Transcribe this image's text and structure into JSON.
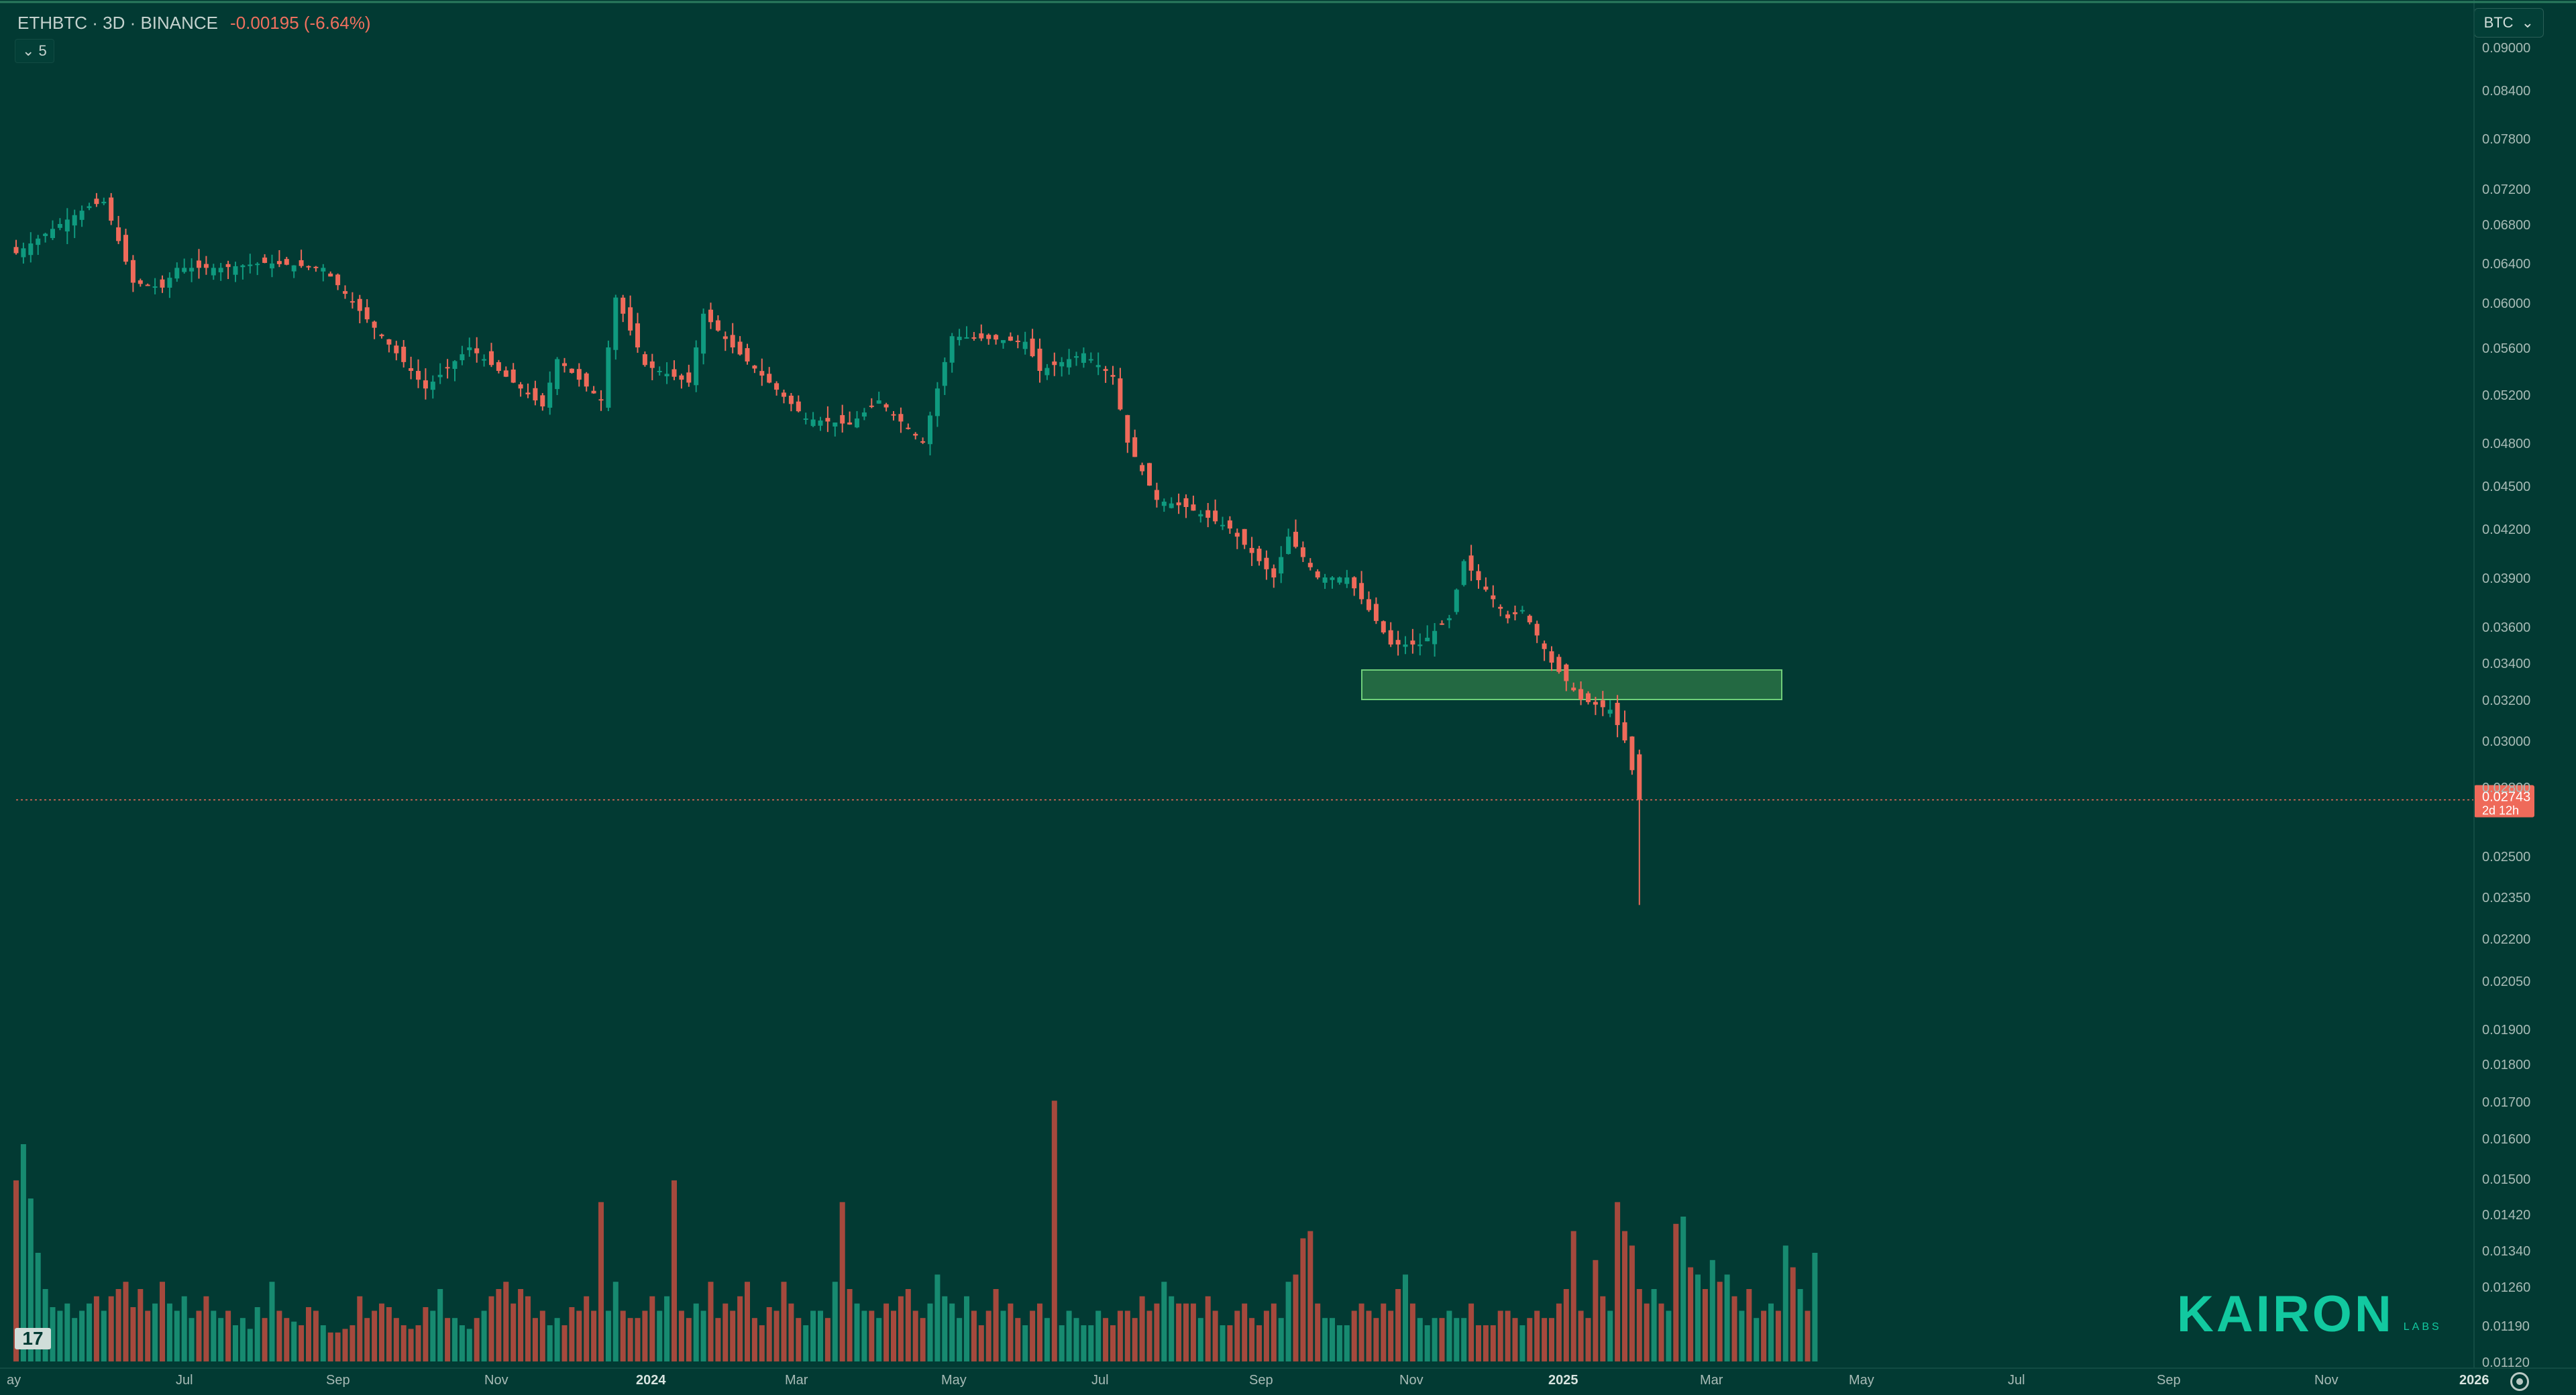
{
  "header": {
    "symbol_line": "ETHBTC · 3D · BINANCE",
    "change": "-0.00195 (-6.64%)",
    "indicator_label": "5",
    "currency": "BTC"
  },
  "price_tag": {
    "value": "0.02743",
    "countdown": "2d 12h"
  },
  "brand": {
    "name": "KAIRON",
    "sub": "LABS"
  },
  "tv_logo": "17",
  "colors": {
    "background": "#023a33",
    "up": "#0f9a7f",
    "down": "#ef6a5a",
    "zone": "#3f8f4f",
    "price_line": "#ef6a5a"
  },
  "chart_data": {
    "type": "candlestick",
    "symbol": "ETHBTC",
    "timeframe": "3D",
    "exchange": "BINANCE",
    "y_axis_ticks": [
      "0.09000",
      "0.08400",
      "0.07800",
      "0.07200",
      "0.06800",
      "0.06400",
      "0.06000",
      "0.05600",
      "0.05200",
      "0.04800",
      "0.04500",
      "0.04200",
      "0.03900",
      "0.03600",
      "0.03400",
      "0.03200",
      "0.03000",
      "0.02800",
      "0.02500",
      "0.02350",
      "0.02200",
      "0.02050",
      "0.01900",
      "0.01800",
      "0.01700",
      "0.01600",
      "0.01500",
      "0.01420",
      "0.01340",
      "0.01260",
      "0.01190",
      "0.01120"
    ],
    "x_axis_labels": [
      "ay",
      "Jul",
      "Sep",
      "Nov",
      "2024",
      "Mar",
      "May",
      "Jul",
      "Sep",
      "Nov",
      "2025",
      "Mar",
      "May",
      "Jul",
      "Sep",
      "Nov",
      "2026"
    ],
    "bold_x_labels": [
      "2024",
      "2025",
      "2026"
    ],
    "last_price": 0.02743,
    "wick_low": 0.0232,
    "zone": {
      "low": 0.032,
      "high": 0.0336
    },
    "price_path": [
      [
        0.065,
        0
      ],
      [
        0.07,
        10
      ],
      [
        0.0705,
        12
      ],
      [
        0.062,
        16
      ],
      [
        0.0615,
        20
      ],
      [
        0.0635,
        22
      ],
      [
        0.0635,
        28
      ],
      [
        0.064,
        34
      ],
      [
        0.0635,
        42
      ],
      [
        0.06,
        46
      ],
      [
        0.0525,
        56
      ],
      [
        0.056,
        62
      ],
      [
        0.053,
        68
      ],
      [
        0.051,
        72
      ],
      [
        0.055,
        74
      ],
      [
        0.0515,
        80
      ],
      [
        0.0605,
        82
      ],
      [
        0.0545,
        86
      ],
      [
        0.053,
        92
      ],
      [
        0.059,
        94
      ],
      [
        0.056,
        98
      ],
      [
        0.05,
        108
      ],
      [
        0.0495,
        114
      ],
      [
        0.0515,
        118
      ],
      [
        0.048,
        124
      ],
      [
        0.057,
        128
      ],
      [
        0.0565,
        138
      ],
      [
        0.054,
        140
      ],
      [
        0.0555,
        146
      ],
      [
        0.0535,
        150
      ],
      [
        0.048,
        152
      ],
      [
        0.044,
        156
      ],
      [
        0.0435,
        160
      ],
      [
        0.042,
        166
      ],
      [
        0.039,
        172
      ],
      [
        0.0415,
        174
      ],
      [
        0.039,
        178
      ],
      [
        0.039,
        182
      ],
      [
        0.035,
        188
      ],
      [
        0.035,
        192
      ],
      [
        0.0365,
        196
      ],
      [
        0.04,
        198
      ],
      [
        0.0365,
        204
      ],
      [
        0.037,
        206
      ],
      [
        0.034,
        210
      ],
      [
        0.032,
        214
      ],
      [
        0.0315,
        218
      ],
      [
        0.03,
        220
      ],
      [
        0.02743,
        222
      ]
    ],
    "volume": [
      50,
      60,
      45,
      30,
      20,
      15,
      14,
      16,
      12,
      14,
      16,
      18,
      14,
      18,
      20,
      22,
      15,
      20,
      14,
      16,
      22,
      16,
      14,
      18,
      12,
      14,
      18,
      14,
      12,
      14,
      10,
      12,
      9,
      15,
      12,
      22,
      14,
      12,
      11,
      10,
      15,
      14,
      10,
      8,
      8,
      9,
      10,
      18,
      12,
      14,
      16,
      15,
      12,
      10,
      9,
      10,
      15,
      14,
      20,
      12,
      12,
      10,
      9,
      12,
      14,
      18,
      20,
      22,
      16,
      20,
      18,
      12,
      14,
      10,
      12,
      10,
      15,
      14,
      18,
      14,
      44,
      14,
      22,
      14,
      12,
      12,
      14,
      18,
      14,
      18,
      50,
      14,
      12,
      16,
      14,
      22,
      12,
      16,
      14,
      18,
      22,
      12,
      10,
      15,
      14,
      22,
      16,
      12,
      10,
      14,
      14,
      12,
      22,
      44,
      20,
      16,
      14,
      14,
      12,
      16,
      14,
      18,
      20,
      14,
      12,
      16,
      24,
      18,
      16,
      12,
      18,
      14,
      10,
      14,
      20,
      14,
      16,
      12,
      10,
      14,
      16,
      12,
      72,
      10,
      14,
      12,
      10,
      10,
      14,
      12,
      10,
      14,
      14,
      12,
      18,
      14,
      16,
      22,
      18,
      16,
      16,
      16,
      12,
      18,
      14,
      10,
      10,
      14,
      16,
      12,
      10,
      14,
      16,
      12,
      22,
      24,
      34,
      36,
      16,
      12,
      12,
      10,
      10,
      14,
      16,
      14,
      12,
      16,
      14,
      20,
      24,
      16,
      12,
      10,
      12,
      12,
      14,
      12,
      12,
      16,
      10,
      10,
      10,
      14,
      14,
      12,
      10,
      12,
      14,
      12,
      12,
      16,
      20,
      36,
      14,
      12,
      28,
      18,
      14,
      44,
      36,
      32,
      20,
      16,
      20,
      16,
      14,
      38,
      40,
      26,
      24,
      20,
      28,
      22,
      24,
      18,
      14,
      20,
      12,
      14,
      16,
      14,
      32,
      26,
      20,
      14,
      30
    ]
  }
}
